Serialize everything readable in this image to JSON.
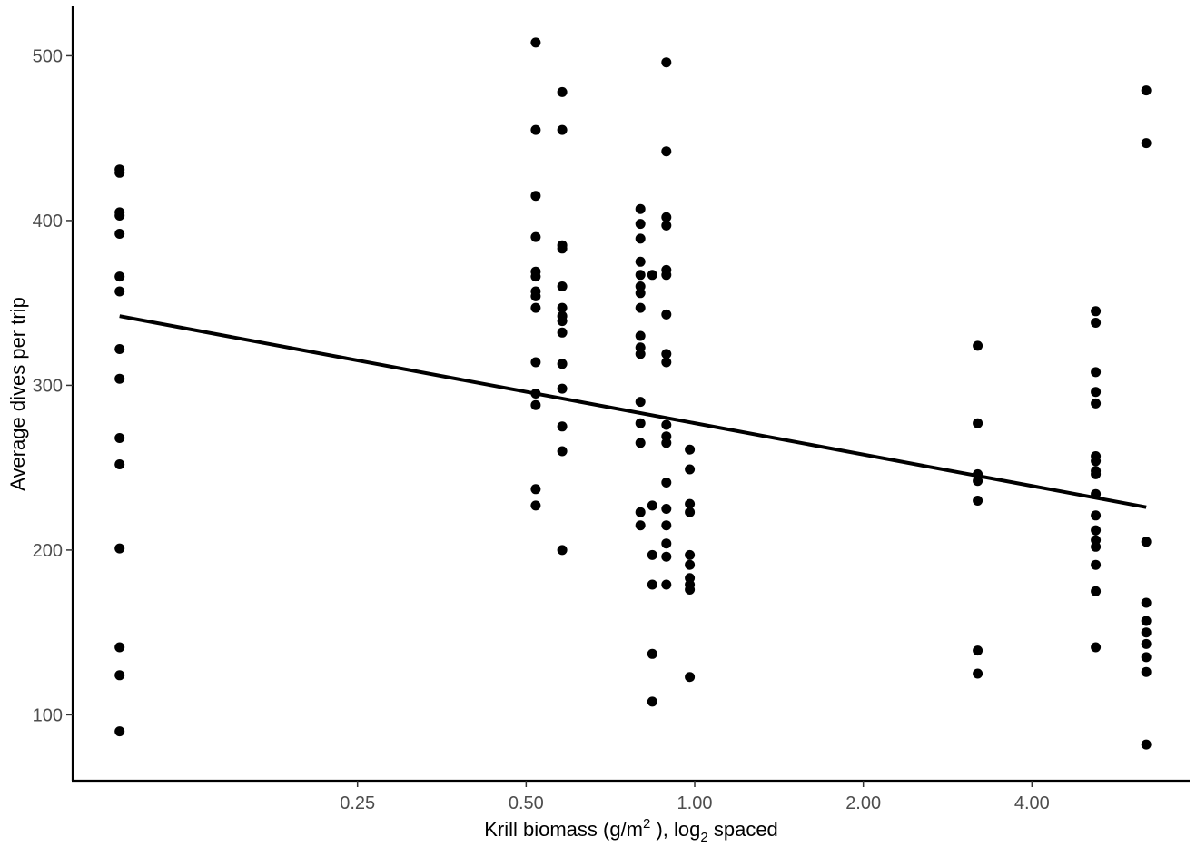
{
  "chart_data": {
    "type": "scatter",
    "xlabel": "Krill biomass (g/m2 ), log2  spaced",
    "xlabel_parts": {
      "pre": "Krill biomass (g/m",
      "sup": "2",
      "mid": " ), log",
      "sub": "2",
      "post": "  spaced"
    },
    "ylabel": "Average dives per trip",
    "x_scale": "log2",
    "x_ticks": [
      0.25,
      0.5,
      1.0,
      2.0,
      4.0
    ],
    "x_tick_labels": [
      "0.25",
      "0.50",
      "1.00",
      "2.00",
      "4.00"
    ],
    "y_ticks": [
      100,
      200,
      300,
      400,
      500
    ],
    "y_tick_labels": [
      "100",
      "200",
      "300",
      "400",
      "500"
    ],
    "xlim": [
      0.0775,
      7.65
    ],
    "ylim": [
      60,
      530
    ],
    "grid": false,
    "legend": "none",
    "point_color": "#000000",
    "groups": [
      {
        "x": 0.094,
        "y": [
          431,
          429,
          405,
          403,
          392,
          366,
          357,
          322,
          304,
          268,
          252,
          201,
          141,
          124,
          90
        ]
      },
      {
        "x": 0.52,
        "y": [
          508,
          455,
          415,
          390,
          369,
          366,
          357,
          354,
          347,
          314,
          295,
          288,
          237,
          227
        ]
      },
      {
        "x": 0.58,
        "y": [
          478,
          455,
          385,
          383,
          360,
          347,
          342,
          339,
          332,
          313,
          298,
          275,
          260,
          200
        ]
      },
      {
        "x": 0.8,
        "y": [
          407,
          398,
          389,
          375,
          367,
          360,
          356,
          347,
          330,
          323,
          319,
          290,
          277,
          265,
          223,
          215
        ]
      },
      {
        "x": 0.84,
        "y": [
          367,
          227,
          197,
          179,
          137,
          108
        ]
      },
      {
        "x": 0.89,
        "y": [
          496,
          442,
          402,
          397,
          370,
          367,
          343,
          319,
          314,
          276,
          269,
          265,
          241,
          225,
          215,
          204,
          196,
          179
        ]
      },
      {
        "x": 0.98,
        "y": [
          261,
          249,
          228,
          223,
          197,
          191,
          183,
          179,
          176,
          123
        ]
      },
      {
        "x": 3.2,
        "y": [
          324,
          277,
          246,
          242,
          230,
          139,
          125
        ]
      },
      {
        "x": 5.2,
        "y": [
          345,
          338,
          308,
          296,
          289,
          257,
          254,
          248,
          246,
          234,
          221,
          212,
          206,
          202,
          191,
          175,
          141
        ]
      },
      {
        "x": 6.4,
        "y": [
          479,
          447,
          205,
          168,
          157,
          150,
          143,
          135,
          126,
          82
        ]
      }
    ],
    "fit_line": {
      "x": [
        0.094,
        6.4
      ],
      "y": [
        342,
        226
      ]
    }
  }
}
